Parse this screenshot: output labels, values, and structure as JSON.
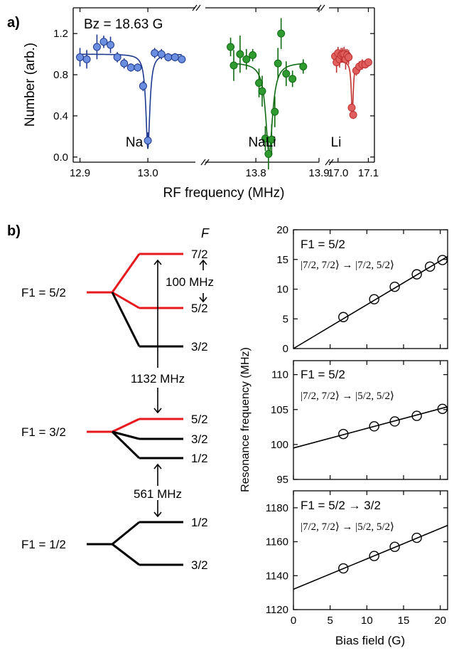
{
  "panel_labels": {
    "a": "a)",
    "b": "b)"
  },
  "colors": {
    "na_fill": "#6b8ee0",
    "na_line": "#1f3a8f",
    "nali_fill": "#2f9a2f",
    "nali_line": "#0f6a12",
    "li_fill": "#e06060",
    "li_line": "#c03030",
    "level_highlight": "#e8191d",
    "level": "#000000"
  },
  "chart_data": [
    {
      "type": "scatter",
      "panel": "a",
      "title": "Bz = 18.63 G",
      "xlabel": "RF frequency (MHz)",
      "ylabel": "Number (arb.)",
      "ylim": [
        -0.05,
        1.45
      ],
      "yticks": [
        "0.0",
        "0.4",
        "0.8",
        "1.2"
      ],
      "grid": false,
      "broken_x_axis": true,
      "segments": [
        {
          "name": "Na",
          "xlim": [
            12.89,
            13.07
          ],
          "xticks": [
            "12.9",
            "13.0"
          ],
          "points": [
            {
              "x": 12.9,
              "y": 0.97,
              "err": 0.09
            },
            {
              "x": 12.91,
              "y": 0.95,
              "err": 0.09
            },
            {
              "x": 12.925,
              "y": 1.07,
              "err": 0.12
            },
            {
              "x": 12.935,
              "y": 1.12,
              "err": 0.06
            },
            {
              "x": 12.945,
              "y": 1.09,
              "err": 0.08
            },
            {
              "x": 12.955,
              "y": 0.97,
              "err": 0.05
            },
            {
              "x": 12.965,
              "y": 0.91,
              "err": 0.05
            },
            {
              "x": 12.975,
              "y": 0.87,
              "err": 0.04
            },
            {
              "x": 12.985,
              "y": 0.87,
              "err": 0.04
            },
            {
              "x": 12.993,
              "y": 0.69,
              "err": 0.05
            },
            {
              "x": 13.0,
              "y": 0.16,
              "err": 0.08
            },
            {
              "x": 13.01,
              "y": 1.01,
              "err": 0.05
            },
            {
              "x": 13.02,
              "y": 1.0,
              "err": 0.05
            },
            {
              "x": 13.03,
              "y": 0.97,
              "err": 0.04
            },
            {
              "x": 13.04,
              "y": 0.97,
              "err": 0.04
            },
            {
              "x": 13.05,
              "y": 0.95,
              "err": 0.03
            }
          ],
          "fit": {
            "baseline": 1.0,
            "center": 13.0,
            "depth": 0.92,
            "width": 0.0035,
            "from": 12.9,
            "to": 13.05
          }
        },
        {
          "name": "NaLi",
          "xlim": [
            13.72,
            13.9
          ],
          "xticks": [
            "13.8",
            "13.9"
          ],
          "points": [
            {
              "x": 13.76,
              "y": 1.07,
              "err": 0.09
            },
            {
              "x": 13.765,
              "y": 0.89,
              "err": 0.15
            },
            {
              "x": 13.775,
              "y": 1.0,
              "err": 0.18
            },
            {
              "x": 13.785,
              "y": 0.95,
              "err": 0.1
            },
            {
              "x": 13.795,
              "y": 0.99,
              "err": 0.06
            },
            {
              "x": 13.805,
              "y": 0.72,
              "err": 0.14
            },
            {
              "x": 13.81,
              "y": 0.64,
              "err": 0.15
            },
            {
              "x": 13.815,
              "y": 0.18,
              "err": 0.12
            },
            {
              "x": 13.82,
              "y": 0.03,
              "err": 0.15
            },
            {
              "x": 13.825,
              "y": 0.17,
              "err": 0.15
            },
            {
              "x": 13.83,
              "y": 0.44,
              "err": 0.15
            },
            {
              "x": 13.835,
              "y": 0.91,
              "err": 0.15
            },
            {
              "x": 13.84,
              "y": 1.2,
              "err": 0.15
            },
            {
              "x": 13.848,
              "y": 0.81,
              "err": 0.12
            },
            {
              "x": 13.858,
              "y": 0.76,
              "err": 0.08
            },
            {
              "x": 13.875,
              "y": 0.88,
              "err": 0.07
            }
          ],
          "fit": {
            "baseline": 0.92,
            "center": 13.821,
            "depth": 0.89,
            "width": 0.0065,
            "from": 13.76,
            "to": 13.875
          }
        },
        {
          "name": "Li",
          "xlim": [
            16.97,
            17.12
          ],
          "xticks": [
            "17.0",
            "17.1"
          ],
          "points": [
            {
              "x": 16.99,
              "y": 0.98,
              "err": 0.05
            },
            {
              "x": 16.995,
              "y": 0.92,
              "err": 0.1
            },
            {
              "x": 17.0,
              "y": 1.01,
              "err": 0.06
            },
            {
              "x": 17.005,
              "y": 0.95,
              "err": 0.08
            },
            {
              "x": 17.01,
              "y": 0.99,
              "err": 0.07
            },
            {
              "x": 17.015,
              "y": 1.0,
              "err": 0.06
            },
            {
              "x": 17.02,
              "y": 1.0,
              "err": 0.07
            },
            {
              "x": 17.025,
              "y": 0.95,
              "err": 0.1
            },
            {
              "x": 17.03,
              "y": 0.99,
              "err": 0.06
            },
            {
              "x": 17.035,
              "y": 0.97,
              "err": 0.07
            },
            {
              "x": 17.045,
              "y": 0.48,
              "err": 0.05
            },
            {
              "x": 17.05,
              "y": 0.41,
              "err": 0.04
            },
            {
              "x": 17.06,
              "y": 0.84,
              "err": 0.05
            },
            {
              "x": 17.07,
              "y": 0.88,
              "err": 0.05
            },
            {
              "x": 17.08,
              "y": 0.9,
              "err": 0.05
            },
            {
              "x": 17.09,
              "y": 0.9,
              "err": 0.04
            },
            {
              "x": 17.1,
              "y": 0.92,
              "err": 0.03
            }
          ],
          "fit": {
            "baseline": 0.93,
            "center": 17.047,
            "depth": 0.5,
            "width": 0.004,
            "from": 16.99,
            "to": 17.1
          }
        }
      ]
    },
    {
      "type": "scatter",
      "panel": "b-top",
      "label": "F1 = 5/2",
      "transition": "|7/2, 7/2⟩ → |7/2, 5/2⟩",
      "ylim": [
        0,
        20
      ],
      "yticks": [
        "0",
        "5",
        "10",
        "15",
        "20"
      ],
      "xlim": [
        0,
        21
      ],
      "points": [
        {
          "x": 6.8,
          "y": 5.3
        },
        {
          "x": 11.0,
          "y": 8.3
        },
        {
          "x": 13.8,
          "y": 10.4
        },
        {
          "x": 16.8,
          "y": 12.5
        },
        {
          "x": 18.6,
          "y": 13.8
        },
        {
          "x": 20.3,
          "y": 14.9
        }
      ],
      "fit_line": {
        "x0": 0,
        "y0": 0,
        "x1": 21,
        "y1": 15.5
      }
    },
    {
      "type": "scatter",
      "panel": "b-mid",
      "label": "F1 = 5/2",
      "transition": "|7/2, 7/2⟩ → |5/2, 5/2⟩",
      "ylim": [
        95,
        112
      ],
      "yticks": [
        "95",
        "100",
        "105",
        "110"
      ],
      "xlim": [
        0,
        21
      ],
      "points": [
        {
          "x": 6.8,
          "y": 101.5
        },
        {
          "x": 11.0,
          "y": 102.6
        },
        {
          "x": 13.8,
          "y": 103.3
        },
        {
          "x": 16.8,
          "y": 104.1
        },
        {
          "x": 20.3,
          "y": 105.1
        }
      ],
      "fit_line": {
        "x0": 0,
        "y0": 99.5,
        "x1": 21,
        "y1": 105.4
      }
    },
    {
      "type": "scatter",
      "panel": "b-bot",
      "label": "F1 = 5/2 → 3/2",
      "transition": "|7/2, 7/2⟩ → |5/2, 5/2⟩",
      "xlabel": "Bias field (G)",
      "ylabel": "Resonance frequency (MHz)",
      "ylim": [
        1120,
        1190
      ],
      "yticks": [
        "1120",
        "1140",
        "1160",
        "1180"
      ],
      "xlim": [
        0,
        21
      ],
      "xticks": [
        "0",
        "5",
        "10",
        "15",
        "20"
      ],
      "points": [
        {
          "x": 6.8,
          "y": 1144.3
        },
        {
          "x": 11.0,
          "y": 1151.6
        },
        {
          "x": 13.8,
          "y": 1157.0
        },
        {
          "x": 16.8,
          "y": 1162.3
        }
      ],
      "fit_line": {
        "x0": 0,
        "y0": 1132,
        "x1": 21,
        "y1": 1169.6
      }
    }
  ],
  "level_diagram": {
    "column_header": "F",
    "f1_labels": [
      "F1 = 5/2",
      "F1 = 3/2",
      "F1 = 1/2"
    ],
    "f_labels": [
      "7/2",
      "5/2",
      "3/2",
      "5/2",
      "3/2",
      "1/2",
      "1/2",
      "3/2"
    ],
    "gap_labels": [
      "100 MHz",
      "1132 MHz",
      "561 MHz"
    ]
  }
}
